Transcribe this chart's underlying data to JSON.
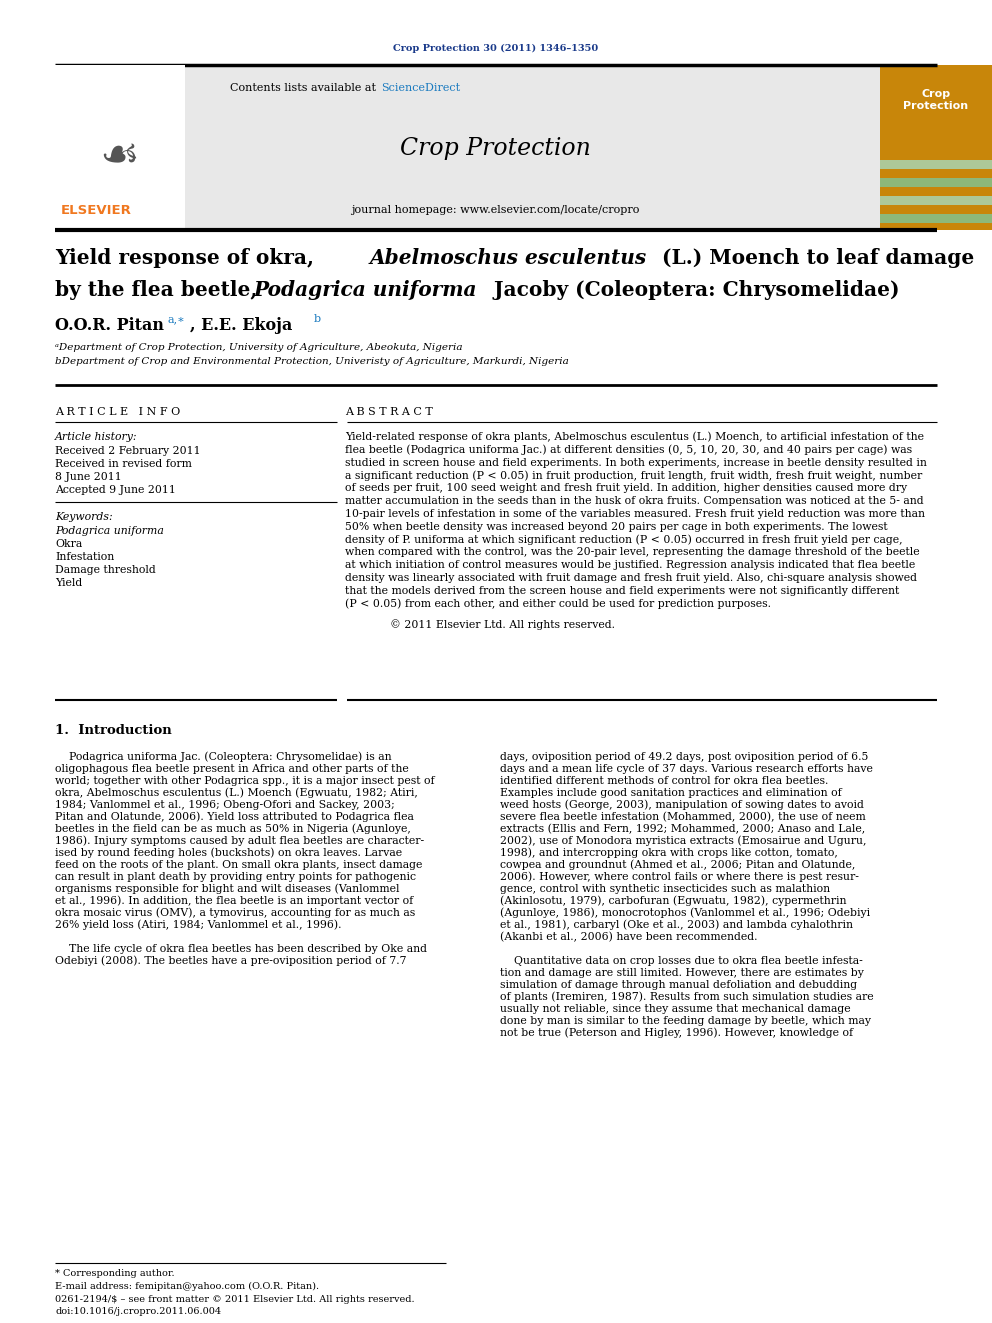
{
  "page_title": "Crop Protection 30 (2011) 1346–1350",
  "journal_name": "Crop Protection",
  "journal_homepage": "journal homepage: www.elsevier.com/locate/cropro",
  "contents_text": "Contents lists available at ",
  "sciencedirect_text": "ScienceDirect",
  "affil_a": "ᵃDepartment of Crop Protection, University of Agriculture, Abeokuta, Nigeria",
  "affil_b": "bDepartment of Crop and Environmental Protection, Univeristy of Agriculture, Markurdi, Nigeria",
  "header_color": "#1a3a8a",
  "sciencedirect_color": "#1a7abf",
  "elsevier_color": "#f07820",
  "banner_orange": "#c8860a",
  "banner_green1": "#8db87a",
  "banner_green2": "#adc898",
  "banner_tan": "#c8aa6e",
  "white": "#ffffff",
  "black": "#000000",
  "light_gray": "#e8e8e8",
  "mid_gray": "#d0d0d0",
  "abstract_lines": [
    "Yield-related response of okra plants, Abelmoschus esculentus (L.) Moench, to artificial infestation of the",
    "flea beetle (Podagrica uniforma Jac.) at different densities (0, 5, 10, 20, 30, and 40 pairs per cage) was",
    "studied in screen house and field experiments. In both experiments, increase in beetle density resulted in",
    "a significant reduction (P < 0.05) in fruit production, fruit length, fruit width, fresh fruit weight, number",
    "of seeds per fruit, 100 seed weight and fresh fruit yield. In addition, higher densities caused more dry",
    "matter accumulation in the seeds than in the husk of okra fruits. Compensation was noticed at the 5- and",
    "10-pair levels of infestation in some of the variables measured. Fresh fruit yield reduction was more than",
    "50% when beetle density was increased beyond 20 pairs per cage in both experiments. The lowest",
    "density of P. uniforma at which significant reduction (P < 0.05) occurred in fresh fruit yield per cage,",
    "when compared with the control, was the 20-pair level, representing the damage threshold of the beetle",
    "at which initiation of control measures would be justified. Regression analysis indicated that flea beetle",
    "density was linearly associated with fruit damage and fresh fruit yield. Also, chi-square analysis showed",
    "that the models derived from the screen house and field experiments were not significantly different",
    "(P < 0.05) from each other, and either could be used for prediction purposes."
  ],
  "intro_col1_lines": [
    "    Podagrica uniforma Jac. (Coleoptera: Chrysomelidae) is an",
    "oligophagous flea beetle present in Africa and other parts of the",
    "world; together with other Podagrica spp., it is a major insect pest of",
    "okra, Abelmoschus esculentus (L.) Moench (Egwuatu, 1982; Atiri,",
    "1984; Vanlommel et al., 1996; Obeng-Ofori and Sackey, 2003;",
    "Pitan and Olatunde, 2006). Yield loss attributed to Podagrica flea",
    "beetles in the field can be as much as 50% in Nigeria (Agunloye,",
    "1986). Injury symptoms caused by adult flea beetles are character-",
    "ised by round feeding holes (buckshots) on okra leaves. Larvae",
    "feed on the roots of the plant. On small okra plants, insect damage",
    "can result in plant death by providing entry points for pathogenic",
    "organisms responsible for blight and wilt diseases (Vanlommel",
    "et al., 1996). In addition, the flea beetle is an important vector of",
    "okra mosaic virus (OMV), a tymovirus, accounting for as much as",
    "26% yield loss (Atiri, 1984; Vanlommel et al., 1996).",
    "",
    "    The life cycle of okra flea beetles has been described by Oke and",
    "Odebiyi (2008). The beetles have a pre-oviposition period of 7.7"
  ],
  "intro_col2_lines": [
    "days, oviposition period of 49.2 days, post oviposition period of 6.5",
    "days and a mean life cycle of 37 days. Various research efforts have",
    "identified different methods of control for okra flea beetles.",
    "Examples include good sanitation practices and elimination of",
    "weed hosts (George, 2003), manipulation of sowing dates to avoid",
    "severe flea beetle infestation (Mohammed, 2000), the use of neem",
    "extracts (Ellis and Fern, 1992; Mohammed, 2000; Anaso and Lale,",
    "2002), use of Monodora myristica extracts (Emosairue and Uguru,",
    "1998), and intercropping okra with crops like cotton, tomato,",
    "cowpea and groundnut (Ahmed et al., 2006; Pitan and Olatunde,",
    "2006). However, where control fails or where there is pest resur-",
    "gence, control with synthetic insecticides such as malathion",
    "(Akinlosotu, 1979), carbofuran (Egwuatu, 1982), cypermethrin",
    "(Agunloye, 1986), monocrotophos (Vanlommel et al., 1996; Odebiyi",
    "et al., 1981), carbaryl (Oke et al., 2003) and lambda cyhalothrin",
    "(Akanbi et al., 2006) have been recommended.",
    "",
    "    Quantitative data on crop losses due to okra flea beetle infesta-",
    "tion and damage are still limited. However, there are estimates by",
    "simulation of damage through manual defoliation and debudding",
    "of plants (Iremiren, 1987). Results from such simulation studies are",
    "usually not reliable, since they assume that mechanical damage",
    "done by man is similar to the feeding damage by beetle, which may",
    "not be true (Peterson and Higley, 1996). However, knowledge of"
  ]
}
